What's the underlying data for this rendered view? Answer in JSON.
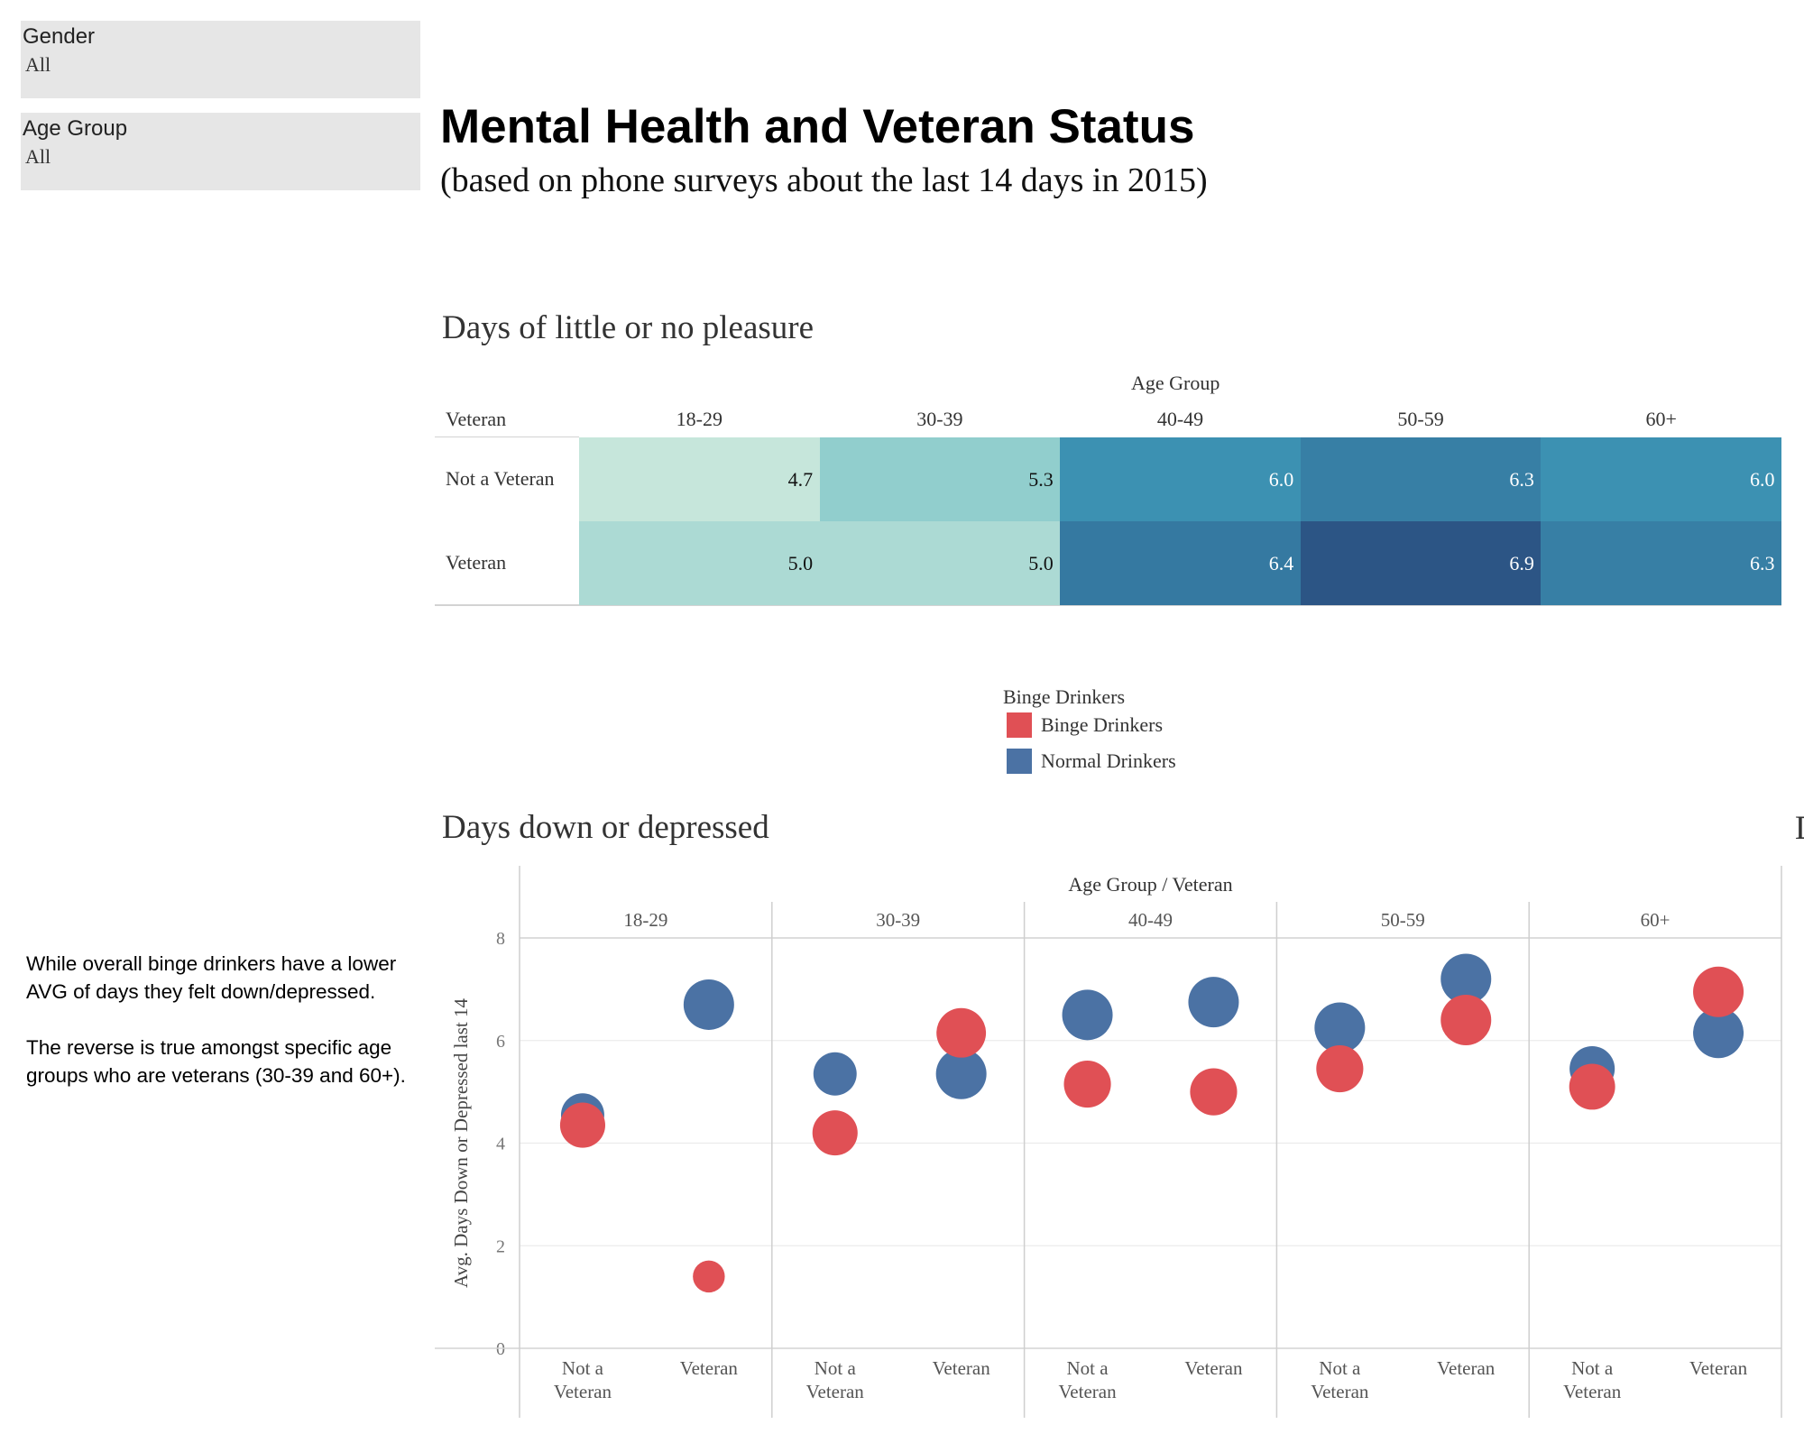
{
  "filters": [
    {
      "title": "Gender",
      "value": "All"
    },
    {
      "title": "Age Group",
      "value": "All"
    }
  ],
  "dashboard": {
    "title": "Mental Health and Veteran Status",
    "subtitle": "(based on phone surveys about the last 14 days in 2015)"
  },
  "annotation": {
    "paragraph_1": "While overall binge drinkers have a lower AVG of days they felt down/depressed.",
    "paragraph_2": "The reverse is true amongst specific age groups who are veterans (30-39 and 60+)."
  },
  "legend": {
    "title": "Binge Drinkers",
    "items": [
      {
        "label": "Binge Drinkers",
        "color": "#e05055"
      },
      {
        "label": "Normal Drinkers",
        "color": "#4b72a4"
      }
    ]
  },
  "edge_glyph": "D",
  "chart_data": [
    {
      "type": "heatmap",
      "title": "Days of little or no pleasure",
      "column_header": "Age Group",
      "row_header": "Veteran",
      "columns": [
        "18-29",
        "30-39",
        "40-49",
        "50-59",
        "60+"
      ],
      "rows": [
        "Not a Veteran",
        "Veteran"
      ],
      "values": [
        [
          4.7,
          5.3,
          6.0,
          6.3,
          6.0
        ],
        [
          5.0,
          5.0,
          6.4,
          6.9,
          6.3
        ]
      ],
      "labels": [
        [
          "4.7",
          "5.3",
          "6.0",
          "6.3",
          "6.0"
        ],
        [
          "5.0",
          "5.0",
          "6.4",
          "6.9",
          "6.3"
        ]
      ],
      "color_scale": {
        "low": "#c6e6db",
        "high": "#2c5585"
      }
    },
    {
      "type": "scatter",
      "title": "Days down or depressed",
      "header": "Age Group  /  Veteran",
      "ylabel": "Avg. Days Down or Depressed last 14",
      "ylim": [
        0,
        8
      ],
      "yticks": [
        0,
        2,
        4,
        6,
        8
      ],
      "groups": [
        "18-29",
        "30-39",
        "40-49",
        "50-59",
        "60+"
      ],
      "categories": [
        "Not a Veteran",
        "Veteran"
      ],
      "category_lines": [
        [
          "Not a",
          "Veteran"
        ],
        [
          "Veteran"
        ]
      ],
      "grid": true,
      "series": [
        {
          "name": "Normal Drinkers",
          "color": "#4b72a4",
          "values": [
            [
              4.55,
              6.7
            ],
            [
              5.35,
              5.35
            ],
            [
              6.5,
              6.75
            ],
            [
              6.25,
              7.2
            ],
            [
              5.45,
              6.15
            ]
          ],
          "sizes": [
            0.55,
            0.75,
            0.55,
            0.75,
            0.75,
            0.75,
            0.75,
            0.75,
            0.6,
            0.75
          ]
        },
        {
          "name": "Binge Drinkers",
          "color": "#e05055",
          "values": [
            [
              4.35,
              1.4
            ],
            [
              4.2,
              6.15
            ],
            [
              5.15,
              5.0
            ],
            [
              5.45,
              6.4
            ],
            [
              5.1,
              6.95
            ]
          ],
          "sizes": [
            0.6,
            0.3,
            0.6,
            0.72,
            0.65,
            0.65,
            0.65,
            0.75,
            0.62,
            0.75
          ]
        }
      ]
    }
  ]
}
